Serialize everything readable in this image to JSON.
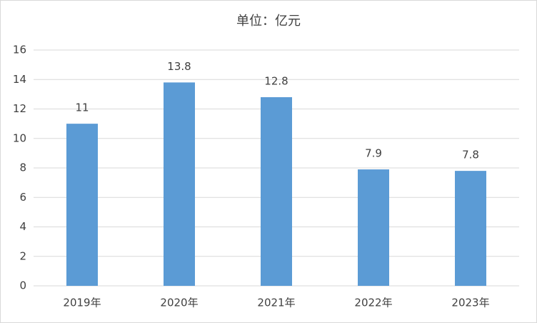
{
  "chart_data": {
    "type": "bar",
    "title": "单位：亿元",
    "categories": [
      "2019年",
      "2020年",
      "2021年",
      "2022年",
      "2023年"
    ],
    "values": [
      11,
      13.8,
      12.8,
      7.9,
      7.8
    ],
    "color": "#5b9bd5",
    "ylim": [
      0,
      16
    ],
    "yticks": [
      0,
      2,
      4,
      6,
      8,
      10,
      12,
      14,
      16
    ],
    "grid": true
  }
}
